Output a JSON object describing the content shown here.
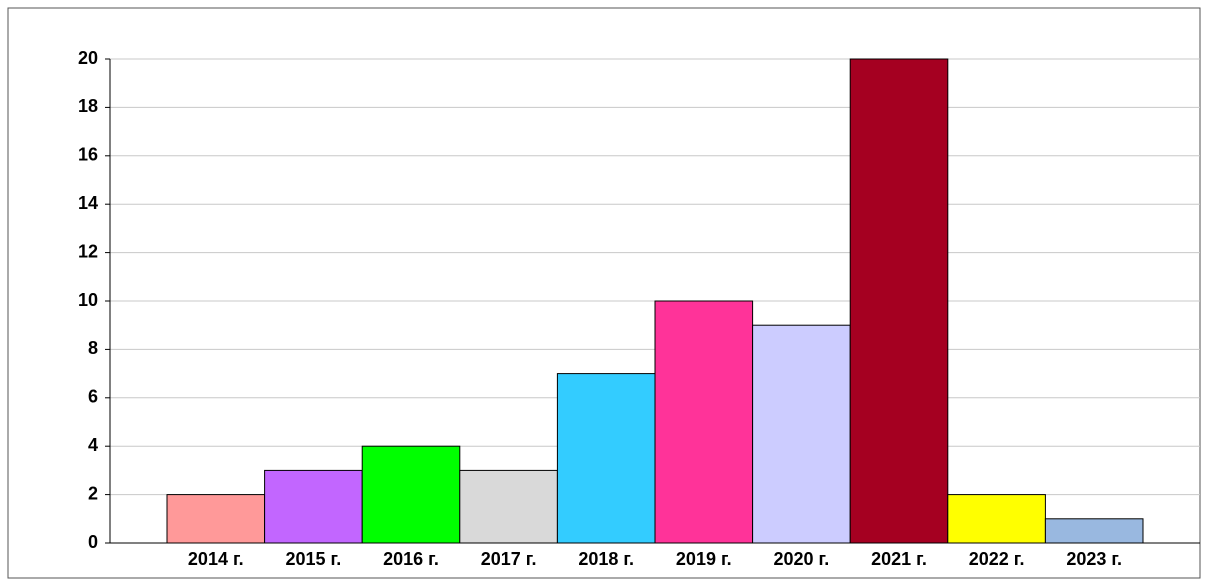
{
  "chart_data": {
    "type": "bar",
    "categories": [
      "2014 г.",
      "2015 г.",
      "2016 г.",
      "2017 г.",
      "2018 г.",
      "2019 г.",
      "2020 г.",
      "2021 г.",
      "2022 г.",
      "2023 г."
    ],
    "values": [
      2,
      3,
      4,
      3,
      7,
      10,
      9,
      20,
      2,
      1
    ],
    "colors": [
      "#ff9999",
      "#c266ff",
      "#00ff00",
      "#d9d9d9",
      "#33ccff",
      "#ff3399",
      "#ccccff",
      "#a50021",
      "#ffff00",
      "#99b8e0"
    ],
    "ylim": [
      0,
      20
    ],
    "yticks": [
      0,
      2,
      4,
      6,
      8,
      10,
      12,
      14,
      16,
      18,
      20
    ],
    "grid": true
  }
}
